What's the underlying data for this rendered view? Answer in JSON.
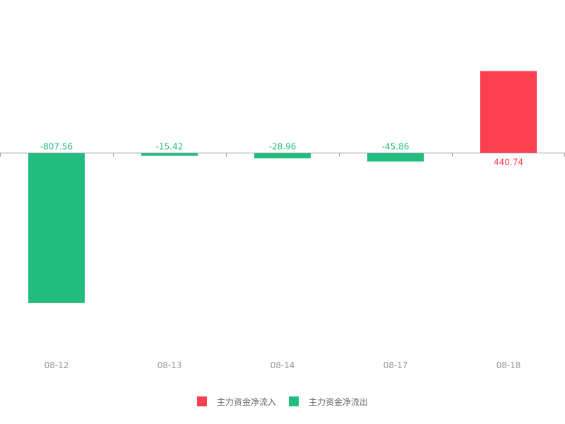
{
  "chart_data": {
    "type": "bar",
    "categories": [
      "08-12",
      "08-13",
      "08-14",
      "08-17",
      "08-18"
    ],
    "values": [
      -807.56,
      -15.42,
      -28.96,
      -45.86,
      440.74
    ],
    "value_labels": [
      "-807.56",
      "-15.42",
      "-28.96",
      "-45.86",
      "440.74"
    ],
    "series": [
      {
        "name": "主力资金净流入",
        "color": "#fa3f4e"
      },
      {
        "name": "主力资金净流出",
        "color": "#21bd7e"
      }
    ],
    "title": "",
    "xlabel": "",
    "ylabel": "",
    "ylim": [
      -1000,
      1000
    ],
    "grid": false,
    "legend_position": "bottom"
  },
  "colors": {
    "positive": "#fa3f4e",
    "negative": "#21bd7e",
    "axis": "#999999",
    "tick_label": "#999999",
    "legend_text": "#666666"
  }
}
